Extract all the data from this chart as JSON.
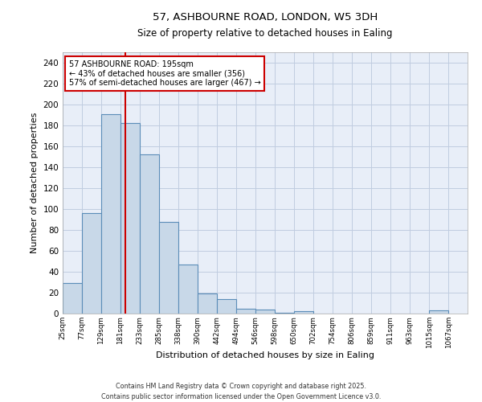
{
  "title_line1": "57, ASHBOURNE ROAD, LONDON, W5 3DH",
  "title_line2": "Size of property relative to detached houses in Ealing",
  "xlabel": "Distribution of detached houses by size in Ealing",
  "ylabel": "Number of detached properties",
  "bar_edges": [
    25,
    77,
    129,
    181,
    233,
    285,
    338,
    390,
    442,
    494,
    546,
    598,
    650,
    702,
    754,
    806,
    859,
    911,
    963,
    1015,
    1067
  ],
  "bar_heights": [
    29,
    96,
    191,
    182,
    152,
    88,
    47,
    19,
    14,
    5,
    4,
    1,
    2,
    0,
    0,
    0,
    0,
    0,
    0,
    3
  ],
  "bar_color": "#c8d8e8",
  "bar_edgecolor": "#5b8db8",
  "bar_linewidth": 0.8,
  "grid_color": "#c0cce0",
  "bg_color": "#e8eef8",
  "red_line_x": 195,
  "red_line_color": "#cc0000",
  "ylim": [
    0,
    250
  ],
  "yticks": [
    0,
    20,
    40,
    60,
    80,
    100,
    120,
    140,
    160,
    180,
    200,
    220,
    240
  ],
  "annotation_text": "57 ASHBOURNE ROAD: 195sqm\n← 43% of detached houses are smaller (356)\n57% of semi-detached houses are larger (467) →",
  "footer_line1": "Contains HM Land Registry data © Crown copyright and database right 2025.",
  "footer_line2": "Contains public sector information licensed under the Open Government Licence v3.0.",
  "tick_labels": [
    "25sqm",
    "77sqm",
    "129sqm",
    "181sqm",
    "233sqm",
    "285sqm",
    "338sqm",
    "390sqm",
    "442sqm",
    "494sqm",
    "546sqm",
    "598sqm",
    "650sqm",
    "702sqm",
    "754sqm",
    "806sqm",
    "859sqm",
    "911sqm",
    "963sqm",
    "1015sqm",
    "1067sqm"
  ]
}
